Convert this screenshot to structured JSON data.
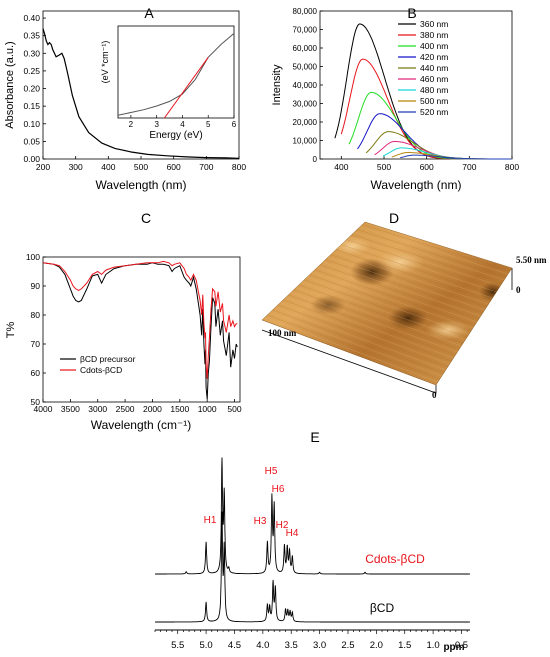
{
  "panels": {
    "A": {
      "letter": "A"
    },
    "B": {
      "letter": "B"
    },
    "C": {
      "letter": "C"
    },
    "D": {
      "letter": "D"
    },
    "E": {
      "letter": "E"
    }
  },
  "chart_data": [
    {
      "panel": "A",
      "type": "line",
      "xlabel": "Wavelength (nm)",
      "ylabel": "Absorbance (a.u.)",
      "xlim": [
        200,
        800
      ],
      "ylim": [
        0,
        0.42
      ],
      "xticks": [
        200,
        300,
        400,
        500,
        600,
        700,
        800
      ],
      "yticks": [
        0.0,
        0.05,
        0.1,
        0.15,
        0.2,
        0.25,
        0.3,
        0.35,
        0.4
      ],
      "series": [
        {
          "color": "#000000",
          "x": [
            200,
            205,
            210,
            215,
            220,
            225,
            230,
            240,
            250,
            258,
            265,
            275,
            290,
            310,
            340,
            380,
            420,
            470,
            520,
            580,
            640,
            700,
            760,
            800
          ],
          "y": [
            0.37,
            0.355,
            0.335,
            0.325,
            0.33,
            0.325,
            0.31,
            0.29,
            0.295,
            0.3,
            0.285,
            0.245,
            0.18,
            0.12,
            0.075,
            0.045,
            0.03,
            0.02,
            0.013,
            0.009,
            0.006,
            0.004,
            0.003,
            0.002
          ]
        }
      ],
      "inset": {
        "xlabel": "Energy (eV)",
        "ylabel": "(eV *cm⁻¹)",
        "xlim": [
          1.5,
          6
        ],
        "xticks": [
          2,
          3,
          4,
          5,
          6
        ],
        "ylim": [
          0,
          1
        ],
        "curve": {
          "color": "#555555",
          "x": [
            1.5,
            2,
            2.5,
            3,
            3.5,
            4,
            4.5,
            5,
            5.5,
            6
          ],
          "y": [
            0.03,
            0.06,
            0.09,
            0.13,
            0.18,
            0.26,
            0.42,
            0.66,
            0.8,
            0.92
          ]
        },
        "fit": {
          "color": "#e8141c",
          "x": [
            3.3,
            5.0
          ],
          "y": [
            0.0,
            0.66
          ]
        }
      }
    },
    {
      "panel": "B",
      "type": "line",
      "xlabel": "Wavelength (nm)",
      "ylabel": "Intensity",
      "xlim": [
        350,
        800
      ],
      "ylim": [
        0,
        80000
      ],
      "xticks": [
        400,
        500,
        600,
        700,
        800
      ],
      "yticks": [
        0,
        10000,
        20000,
        30000,
        40000,
        50000,
        60000,
        70000,
        80000
      ],
      "ytick_labels": [
        "0",
        "10,000",
        "20,000",
        "30,000",
        "40,000",
        "50,000",
        "60,000",
        "70,000",
        "80,000"
      ],
      "series": [
        {
          "name": "360 nm",
          "color": "#000000",
          "start": 385,
          "peak": 443,
          "amp": 73000,
          "wl": 30,
          "wr": 58
        },
        {
          "name": "380 nm",
          "color": "#e8141c",
          "start": 400,
          "peak": 450,
          "amp": 54000,
          "wl": 30,
          "wr": 58
        },
        {
          "name": "400 nm",
          "color": "#22dd22",
          "start": 418,
          "peak": 470,
          "amp": 36000,
          "wl": 30,
          "wr": 58
        },
        {
          "name": "420 nm",
          "color": "#1515c8",
          "start": 438,
          "peak": 490,
          "amp": 24500,
          "wl": 30,
          "wr": 58
        },
        {
          "name": "440 nm",
          "color": "#7a7a10",
          "start": 458,
          "peak": 510,
          "amp": 14800,
          "wl": 30,
          "wr": 58
        },
        {
          "name": "460 nm",
          "color": "#e0287a",
          "start": 478,
          "peak": 525,
          "amp": 9500,
          "wl": 28,
          "wr": 58
        },
        {
          "name": "480 nm",
          "color": "#18d6d6",
          "start": 498,
          "peak": 540,
          "amp": 6000,
          "wl": 26,
          "wr": 58
        },
        {
          "name": "500 nm",
          "color": "#b8860b",
          "start": 518,
          "peak": 555,
          "amp": 3500,
          "wl": 24,
          "wr": 58
        },
        {
          "name": "520 nm",
          "color": "#1f3fb4",
          "start": 538,
          "peak": 570,
          "amp": 2100,
          "wl": 22,
          "wr": 58
        }
      ]
    },
    {
      "panel": "C",
      "type": "line",
      "xlabel": "Wavelength (cm⁻¹)",
      "ylabel": "T%",
      "xlim": [
        4000,
        400
      ],
      "ylim": [
        50,
        100
      ],
      "xticks": [
        4000,
        3500,
        3000,
        2500,
        2000,
        1500,
        1000,
        500
      ],
      "yticks": [
        50,
        60,
        70,
        80,
        90,
        100
      ],
      "legend_position": "bottom-left",
      "series": [
        {
          "name": "βCD precursor",
          "color": "#000000",
          "x": [
            4000,
            3800,
            3700,
            3600,
            3500,
            3450,
            3400,
            3350,
            3300,
            3200,
            3100,
            3000,
            2930,
            2850,
            2700,
            2500,
            2300,
            2100,
            2000,
            1900,
            1800,
            1700,
            1640,
            1600,
            1500,
            1420,
            1380,
            1330,
            1300,
            1250,
            1200,
            1160,
            1130,
            1100,
            1080,
            1060,
            1040,
            1030,
            1020,
            1000,
            980,
            960,
            945,
            930,
            900,
            860,
            840,
            800,
            760,
            720,
            700,
            650,
            600,
            570,
            530,
            500,
            470,
            450
          ],
          "y": [
            98,
            97.5,
            96.5,
            94,
            89,
            86.5,
            85,
            84.5,
            85,
            89,
            93.5,
            94,
            91,
            94,
            96,
            97,
            97.5,
            97.5,
            98,
            97.5,
            97.5,
            97,
            95,
            96,
            97,
            93,
            92,
            91,
            90,
            93,
            89,
            84,
            80,
            73,
            82,
            70,
            63,
            68,
            55,
            51,
            60,
            64,
            70,
            76,
            86,
            84,
            76,
            82,
            73,
            78,
            71,
            66,
            74,
            62,
            68,
            65,
            70,
            69
          ]
        },
        {
          "name": "Cdots-βCD",
          "color": "#e8141c",
          "x": [
            4000,
            3800,
            3700,
            3600,
            3500,
            3450,
            3400,
            3350,
            3300,
            3200,
            3100,
            3000,
            2930,
            2850,
            2700,
            2500,
            2300,
            2100,
            2000,
            1900,
            1800,
            1700,
            1640,
            1600,
            1500,
            1420,
            1380,
            1330,
            1300,
            1250,
            1200,
            1160,
            1130,
            1100,
            1080,
            1060,
            1040,
            1030,
            1020,
            1000,
            980,
            960,
            945,
            930,
            900,
            860,
            840,
            800,
            760,
            720,
            700,
            650,
            600,
            570,
            530,
            500,
            470,
            450
          ],
          "y": [
            98,
            97.5,
            97,
            95,
            92,
            90,
            89,
            88.5,
            89,
            91,
            94,
            95,
            94,
            95.5,
            96.5,
            97,
            97.5,
            98,
            98,
            98,
            98.5,
            98,
            97,
            97.5,
            98,
            96,
            94,
            93,
            92,
            94,
            92,
            88,
            85,
            80,
            87,
            77,
            72,
            74,
            63,
            58,
            66,
            72,
            77,
            82,
            89,
            88,
            83,
            88,
            81,
            84,
            78,
            74,
            80,
            76,
            78,
            76,
            77,
            77
          ]
        }
      ]
    },
    {
      "panel": "D",
      "type": "surface",
      "axis_labels": {
        "x": "100 nm",
        "height_max": "5.50 nm",
        "zero_right": "0",
        "zero_front": "0"
      }
    },
    {
      "panel": "E",
      "type": "line",
      "xlabel": "ppm",
      "xlim": [
        5.9,
        0.35
      ],
      "xticks": [
        5.5,
        5.0,
        4.5,
        4.0,
        3.5,
        3.0,
        2.5,
        2.0,
        1.5,
        1.0,
        0.5
      ],
      "xtick_labels": [
        "5.5",
        "5.0",
        "4.5",
        "4.0",
        "3.5",
        "3.0",
        "2.5",
        "2.0",
        "1.5",
        "1.0",
        "0.5"
      ],
      "peak_labels": [
        "H1",
        "H5",
        "H6",
        "H3",
        "H2",
        "H4"
      ],
      "series": [
        {
          "name": "Cdots-βCD",
          "color": "#000000",
          "label_color": "#e8141c",
          "peaks": [
            [
              5.35,
              4
            ],
            [
              5.0,
              58
            ],
            [
              4.72,
              200
            ],
            [
              4.68,
              140
            ],
            [
              4.6,
              8
            ],
            [
              3.92,
              56
            ],
            [
              3.84,
              135
            ],
            [
              3.8,
              120
            ],
            [
              3.62,
              50
            ],
            [
              3.57,
              46
            ],
            [
              3.53,
              40
            ],
            [
              3.48,
              30
            ],
            [
              3.0,
              3
            ],
            [
              2.2,
              3
            ]
          ]
        },
        {
          "name": "βCD",
          "color": "#000000",
          "label_color": "#000000",
          "peaks": [
            [
              5.0,
              36
            ],
            [
              4.72,
              190
            ],
            [
              4.68,
              130
            ],
            [
              3.92,
              30
            ],
            [
              3.88,
              26
            ],
            [
              3.82,
              70
            ],
            [
              3.78,
              60
            ],
            [
              3.6,
              22
            ],
            [
              3.56,
              20
            ],
            [
              3.52,
              18
            ],
            [
              3.48,
              16
            ]
          ]
        }
      ]
    }
  ]
}
